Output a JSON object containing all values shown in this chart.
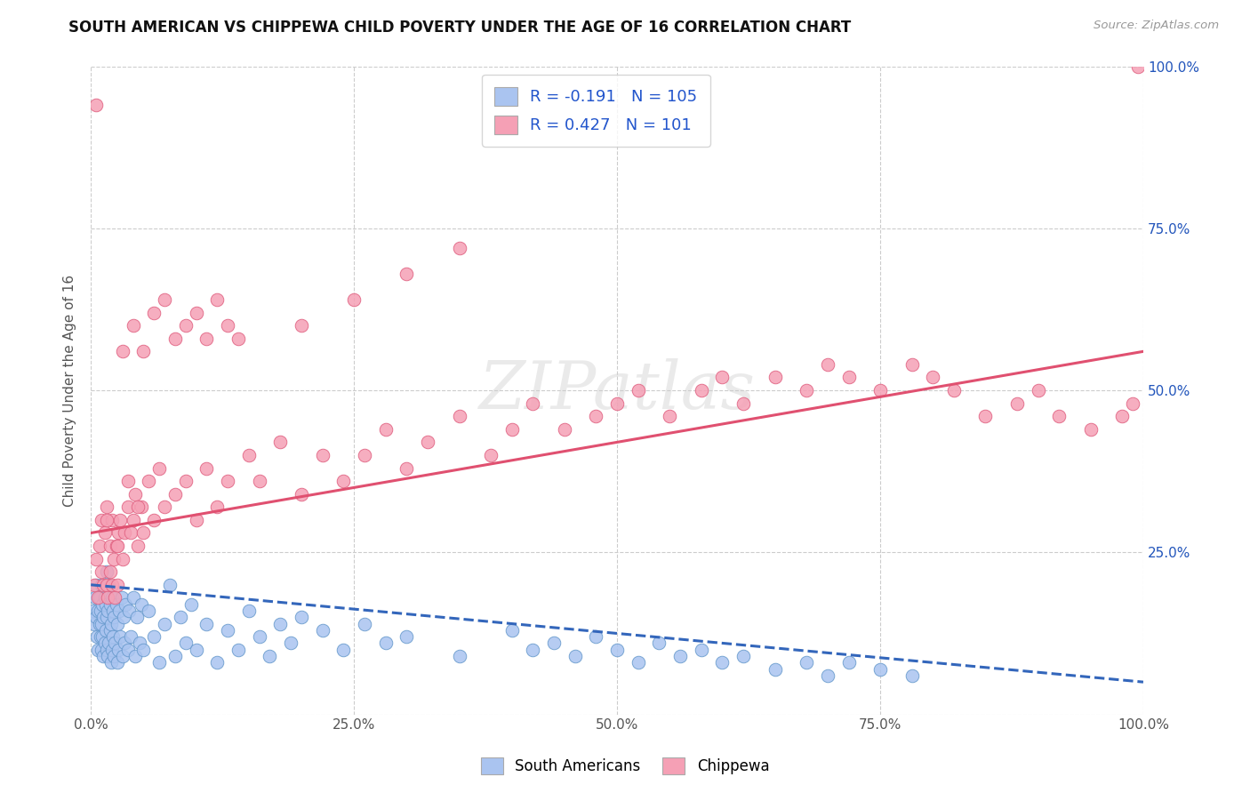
{
  "title": "SOUTH AMERICAN VS CHIPPEWA CHILD POVERTY UNDER THE AGE OF 16 CORRELATION CHART",
  "source": "Source: ZipAtlas.com",
  "ylabel": "Child Poverty Under the Age of 16",
  "xlim": [
    0.0,
    1.0
  ],
  "ylim": [
    0.0,
    1.0
  ],
  "xtick_vals": [
    0.0,
    0.25,
    0.5,
    0.75,
    1.0
  ],
  "xtick_labels": [
    "0.0%",
    "25.0%",
    "50.0%",
    "75.0%",
    "100.0%"
  ],
  "ytick_vals": [
    0.0,
    0.25,
    0.5,
    0.75,
    1.0
  ],
  "right_ytick_vals": [
    0.25,
    0.5,
    0.75,
    1.0
  ],
  "right_ytick_labels": [
    "25.0%",
    "50.0%",
    "75.0%",
    "100.0%"
  ],
  "south_american_R": -0.191,
  "south_american_N": 105,
  "chippewa_R": 0.427,
  "chippewa_N": 101,
  "sa_color": "#aac4f0",
  "sa_edge": "#6699cc",
  "ch_color": "#f5a0b5",
  "ch_edge": "#e06080",
  "sa_line_color": "#3366bb",
  "ch_line_color": "#e05070",
  "background_color": "#ffffff",
  "grid_color": "#cccccc",
  "sa_line_start_y": 0.2,
  "sa_line_end_y": 0.05,
  "ch_line_start_y": 0.28,
  "ch_line_end_y": 0.56,
  "south_americans_x": [
    0.002,
    0.003,
    0.004,
    0.005,
    0.005,
    0.006,
    0.007,
    0.007,
    0.008,
    0.008,
    0.009,
    0.009,
    0.01,
    0.01,
    0.01,
    0.011,
    0.011,
    0.012,
    0.012,
    0.013,
    0.013,
    0.014,
    0.014,
    0.015,
    0.015,
    0.015,
    0.016,
    0.016,
    0.017,
    0.017,
    0.018,
    0.018,
    0.019,
    0.019,
    0.02,
    0.02,
    0.021,
    0.021,
    0.022,
    0.022,
    0.023,
    0.024,
    0.025,
    0.025,
    0.026,
    0.027,
    0.028,
    0.029,
    0.03,
    0.031,
    0.032,
    0.033,
    0.035,
    0.036,
    0.038,
    0.04,
    0.042,
    0.044,
    0.046,
    0.048,
    0.05,
    0.055,
    0.06,
    0.065,
    0.07,
    0.075,
    0.08,
    0.085,
    0.09,
    0.095,
    0.1,
    0.11,
    0.12,
    0.13,
    0.14,
    0.15,
    0.16,
    0.17,
    0.18,
    0.19,
    0.2,
    0.22,
    0.24,
    0.26,
    0.28,
    0.3,
    0.35,
    0.4,
    0.42,
    0.44,
    0.46,
    0.48,
    0.5,
    0.52,
    0.54,
    0.56,
    0.58,
    0.6,
    0.62,
    0.65,
    0.68,
    0.7,
    0.72,
    0.75,
    0.78
  ],
  "south_americans_y": [
    0.16,
    0.14,
    0.18,
    0.15,
    0.2,
    0.12,
    0.16,
    0.1,
    0.14,
    0.18,
    0.12,
    0.16,
    0.1,
    0.14,
    0.2,
    0.12,
    0.17,
    0.09,
    0.15,
    0.11,
    0.18,
    0.13,
    0.17,
    0.1,
    0.15,
    0.22,
    0.09,
    0.16,
    0.11,
    0.2,
    0.13,
    0.17,
    0.08,
    0.14,
    0.1,
    0.18,
    0.12,
    0.16,
    0.09,
    0.15,
    0.11,
    0.17,
    0.08,
    0.14,
    0.1,
    0.16,
    0.12,
    0.18,
    0.09,
    0.15,
    0.11,
    0.17,
    0.1,
    0.16,
    0.12,
    0.18,
    0.09,
    0.15,
    0.11,
    0.17,
    0.1,
    0.16,
    0.12,
    0.08,
    0.14,
    0.2,
    0.09,
    0.15,
    0.11,
    0.17,
    0.1,
    0.14,
    0.08,
    0.13,
    0.1,
    0.16,
    0.12,
    0.09,
    0.14,
    0.11,
    0.15,
    0.13,
    0.1,
    0.14,
    0.11,
    0.12,
    0.09,
    0.13,
    0.1,
    0.11,
    0.09,
    0.12,
    0.1,
    0.08,
    0.11,
    0.09,
    0.1,
    0.08,
    0.09,
    0.07,
    0.08,
    0.06,
    0.08,
    0.07,
    0.06
  ],
  "chippewa_x": [
    0.003,
    0.005,
    0.007,
    0.008,
    0.01,
    0.01,
    0.012,
    0.013,
    0.015,
    0.015,
    0.016,
    0.018,
    0.018,
    0.02,
    0.02,
    0.022,
    0.023,
    0.024,
    0.025,
    0.026,
    0.028,
    0.03,
    0.032,
    0.035,
    0.038,
    0.04,
    0.042,
    0.045,
    0.048,
    0.05,
    0.055,
    0.06,
    0.065,
    0.07,
    0.08,
    0.09,
    0.1,
    0.11,
    0.12,
    0.13,
    0.15,
    0.16,
    0.18,
    0.2,
    0.22,
    0.24,
    0.26,
    0.28,
    0.3,
    0.32,
    0.35,
    0.38,
    0.4,
    0.42,
    0.45,
    0.48,
    0.5,
    0.52,
    0.55,
    0.58,
    0.6,
    0.62,
    0.65,
    0.68,
    0.7,
    0.72,
    0.75,
    0.78,
    0.8,
    0.82,
    0.85,
    0.88,
    0.9,
    0.92,
    0.95,
    0.98,
    0.99,
    0.995,
    0.2,
    0.25,
    0.3,
    0.35,
    0.03,
    0.04,
    0.05,
    0.06,
    0.07,
    0.08,
    0.09,
    0.1,
    0.11,
    0.12,
    0.13,
    0.14,
    0.015,
    0.025,
    0.035,
    0.045,
    0.005
  ],
  "chippewa_y": [
    0.2,
    0.24,
    0.18,
    0.26,
    0.22,
    0.3,
    0.2,
    0.28,
    0.2,
    0.32,
    0.18,
    0.26,
    0.22,
    0.2,
    0.3,
    0.24,
    0.18,
    0.26,
    0.2,
    0.28,
    0.3,
    0.24,
    0.28,
    0.32,
    0.28,
    0.3,
    0.34,
    0.26,
    0.32,
    0.28,
    0.36,
    0.3,
    0.38,
    0.32,
    0.34,
    0.36,
    0.3,
    0.38,
    0.32,
    0.36,
    0.4,
    0.36,
    0.42,
    0.34,
    0.4,
    0.36,
    0.4,
    0.44,
    0.38,
    0.42,
    0.46,
    0.4,
    0.44,
    0.48,
    0.44,
    0.46,
    0.48,
    0.5,
    0.46,
    0.5,
    0.52,
    0.48,
    0.52,
    0.5,
    0.54,
    0.52,
    0.5,
    0.54,
    0.52,
    0.5,
    0.46,
    0.48,
    0.5,
    0.46,
    0.44,
    0.46,
    0.48,
    1.0,
    0.6,
    0.64,
    0.68,
    0.72,
    0.56,
    0.6,
    0.56,
    0.62,
    0.64,
    0.58,
    0.6,
    0.62,
    0.58,
    0.64,
    0.6,
    0.58,
    0.3,
    0.26,
    0.36,
    0.32,
    0.94
  ]
}
